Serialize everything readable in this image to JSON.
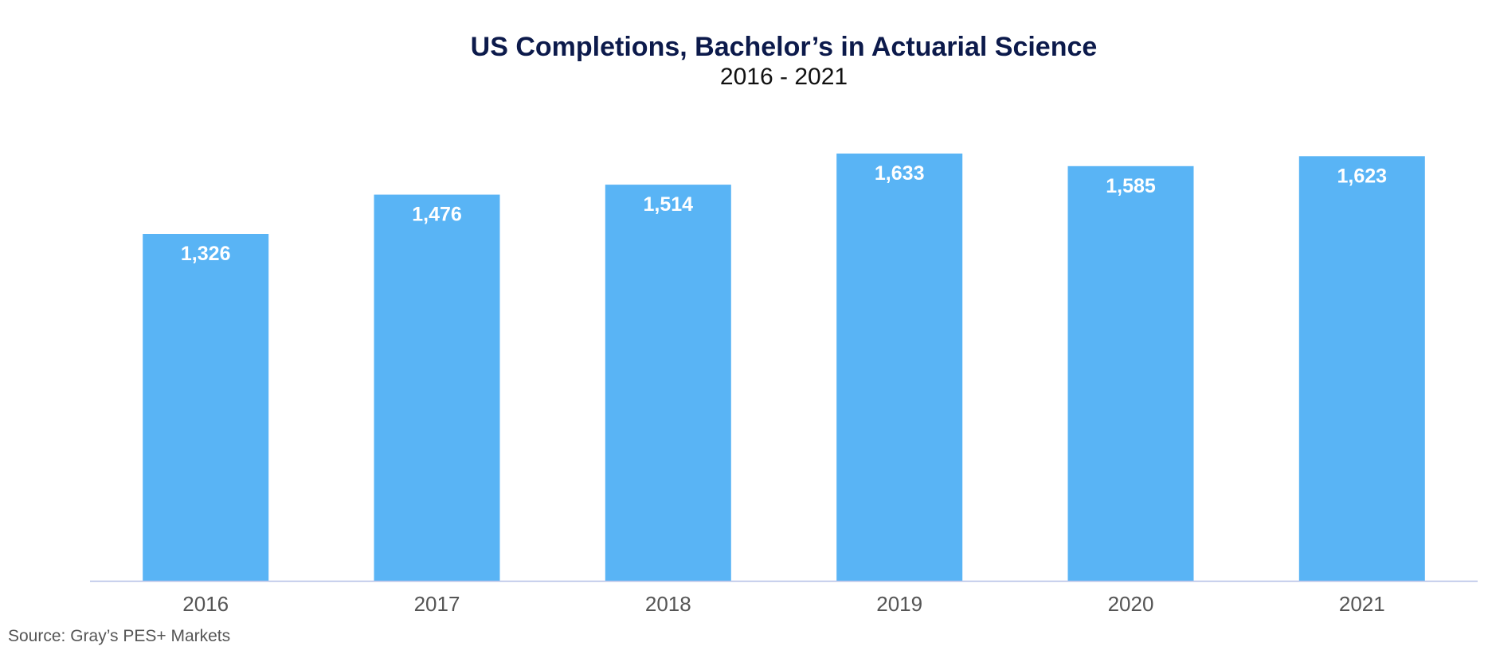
{
  "chart_data": {
    "type": "bar",
    "title": "US Completions, Bachelor’s in Actuarial Science",
    "subtitle": "2016 - 2021",
    "categories": [
      "2016",
      "2017",
      "2018",
      "2019",
      "2020",
      "2021"
    ],
    "values": [
      1326,
      1476,
      1514,
      1633,
      1585,
      1623
    ],
    "value_labels": [
      "1,326",
      "1,476",
      "1,514",
      "1,633",
      "1,585",
      "1,623"
    ],
    "xlabel": "",
    "ylabel": "",
    "ylim": [
      0,
      1633
    ],
    "grid": false,
    "legend": "none",
    "colors": {
      "bar": "#59b4f5",
      "axis": "#b4bfe6",
      "title": "#0c1a4b",
      "label": "#ffffff"
    }
  },
  "source": "Source:  Gray’s PES+ Markets"
}
